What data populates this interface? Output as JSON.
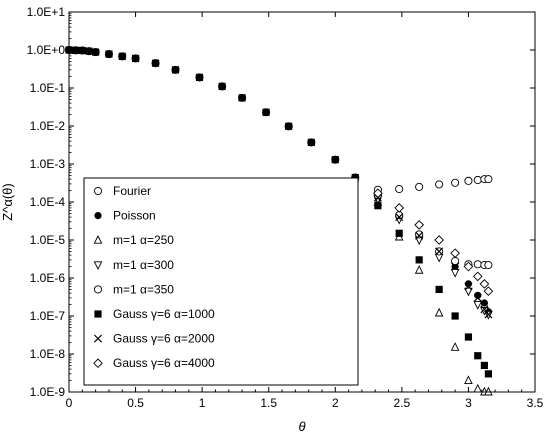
{
  "chart_data": {
    "type": "scatter",
    "xlabel": "θ",
    "ylabel": "Z^α(θ)",
    "xlim": [
      0,
      3.5
    ],
    "ylim": [
      1e-09,
      10
    ],
    "yscale": "log",
    "grid": false,
    "legend_position": "bottom-left",
    "x_ticks": [
      "0",
      "0.5",
      "1",
      "1.5",
      "2",
      "2.5",
      "3",
      "3.5"
    ],
    "y_ticks": [
      "1.0E+1",
      "1.0E+0",
      "1.0E-1",
      "1.0E-2",
      "1.0E-3",
      "1.0E-4",
      "1.0E-5",
      "1.0E-6",
      "1.0E-7",
      "1.0E-8",
      "1.0E-9"
    ],
    "shared_curve": {
      "x": [
        0,
        0.05,
        0.1,
        0.15,
        0.2,
        0.3,
        0.4,
        0.5,
        0.65,
        0.8,
        0.98,
        1.15,
        1.3,
        1.48,
        1.65,
        1.82,
        2.0,
        2.15
      ],
      "y": [
        1.0,
        0.98,
        0.97,
        0.93,
        0.88,
        0.78,
        0.68,
        0.6,
        0.45,
        0.3,
        0.19,
        0.11,
        0.055,
        0.023,
        0.0098,
        0.0037,
        0.0013,
        0.00044
      ]
    },
    "series": [
      {
        "name": "Fourier",
        "marker": "circle-open",
        "x": [
          2.32,
          2.48,
          2.63,
          2.78,
          2.9,
          3.0,
          3.07,
          3.12,
          3.15
        ],
        "y": [
          0.00021,
          0.00022,
          0.00025,
          0.00029,
          0.00032,
          0.00036,
          0.00038,
          0.0004,
          0.0004
        ]
      },
      {
        "name": "Poisson",
        "marker": "circle-filled",
        "x": [
          2.32,
          2.48,
          2.63,
          2.78,
          2.9,
          3.0,
          3.07,
          3.12,
          3.15
        ],
        "y": [
          0.00013,
          4e-05,
          1.3e-05,
          5e-06,
          2e-06,
          7e-07,
          3.5e-07,
          2.2e-07,
          1.3e-07
        ]
      },
      {
        "name": "m=1  α=250",
        "marker": "triangle-up-open",
        "x": [
          2.32,
          2.48,
          2.63,
          2.78,
          2.9,
          3.0,
          3.07,
          3.12,
          3.15
        ],
        "y": [
          0.0001,
          1.2e-05,
          1.6e-06,
          1.2e-07,
          1.5e-08,
          2e-09,
          1.2e-09,
          1e-09,
          1e-09
        ]
      },
      {
        "name": "m=1  α=300",
        "marker": "triangle-down-open",
        "x": [
          2.32,
          2.48,
          2.63,
          2.78,
          2.9,
          3.0,
          3.07,
          3.12,
          3.15
        ],
        "y": [
          0.00012,
          3.5e-05,
          1e-05,
          3.5e-06,
          1.4e-06,
          4.5e-07,
          2e-07,
          1.4e-07,
          1.1e-07
        ]
      },
      {
        "name": "m=1  α=350",
        "marker": "circle-open",
        "x": [
          2.32,
          2.48,
          2.63,
          2.78,
          2.9,
          3.0,
          3.07,
          3.12,
          3.15
        ],
        "y": [
          0.00015,
          4.5e-05,
          1.4e-05,
          5e-06,
          2.8e-06,
          2.3e-06,
          2.3e-06,
          2.2e-06,
          2.2e-06
        ]
      },
      {
        "name": "Gauss  γ=6  α=1000",
        "marker": "square-filled",
        "x": [
          2.32,
          2.48,
          2.63,
          2.78,
          2.9,
          3.0,
          3.07,
          3.12,
          3.15
        ],
        "y": [
          8e-05,
          1.5e-05,
          3e-06,
          5e-07,
          1e-07,
          2.8e-08,
          9e-09,
          5e-09,
          3e-09
        ]
      },
      {
        "name": "Gauss  γ=6  α=2000",
        "marker": "cross",
        "x": [
          2.32,
          2.48,
          2.63,
          2.78,
          2.9,
          3.0,
          3.07,
          3.12,
          3.15
        ],
        "y": [
          0.00013,
          4e-05,
          1.3e-05,
          5e-06,
          2e-06,
          6e-07,
          3e-07,
          1.5e-07,
          1.1e-07
        ]
      },
      {
        "name": "Gauss  γ=6  α=4000",
        "marker": "diamond-open",
        "x": [
          2.32,
          2.48,
          2.63,
          2.78,
          2.9,
          3.0,
          3.07,
          3.12,
          3.15
        ],
        "y": [
          0.00017,
          7e-05,
          2.5e-05,
          1e-05,
          4.5e-06,
          2e-06,
          1.1e-06,
          7e-07,
          4.5e-07
        ]
      }
    ]
  }
}
